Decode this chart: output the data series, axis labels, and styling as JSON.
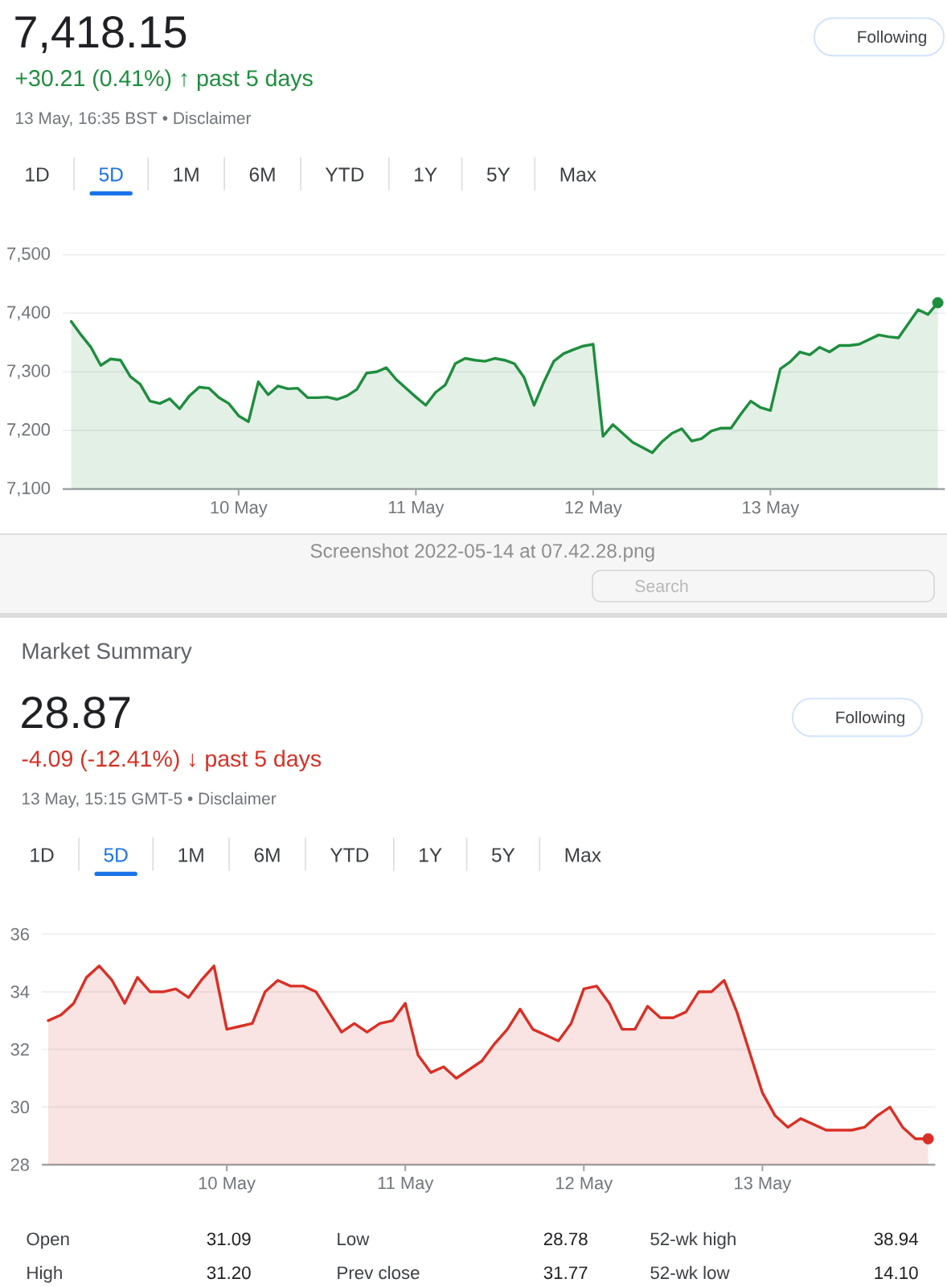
{
  "chart_data": [
    {
      "type": "area",
      "title": "7,418.15",
      "subtitle": "+30.21 (0.41%) ↑ past 5 days",
      "annotations": [
        "13 May, 16:35 BST • Disclaimer",
        "Following",
        "1D",
        "5D",
        "1M",
        "6M",
        "YTD",
        "1Y",
        "5Y",
        "Max"
      ],
      "categories": [
        null,
        null,
        null,
        null,
        null,
        null,
        null,
        null,
        null,
        null,
        null,
        null,
        null,
        null,
        null,
        null,
        null,
        "10 May",
        null,
        null,
        null,
        null,
        null,
        null,
        null,
        null,
        null,
        null,
        null,
        null,
        null,
        null,
        null,
        null,
        null,
        "11 May",
        null,
        null,
        null,
        null,
        null,
        null,
        null,
        null,
        null,
        null,
        null,
        null,
        null,
        null,
        null,
        null,
        null,
        "12 May",
        null,
        null,
        null,
        null,
        null,
        null,
        null,
        null,
        null,
        null,
        null,
        null,
        null,
        null,
        null,
        null,
        null,
        "13 May",
        null,
        null,
        null,
        null,
        null,
        null,
        null,
        null,
        null,
        null,
        null,
        null,
        null,
        null,
        null,
        null,
        null
      ],
      "ylim": [
        7100,
        7500
      ],
      "yticks": [
        {
          "value": 7100,
          "label": "7,100"
        },
        {
          "value": 7200,
          "label": "7,200"
        },
        {
          "value": 7300,
          "label": "7,300"
        },
        {
          "value": 7400,
          "label": "7,400"
        },
        {
          "value": 7500,
          "label": "7,500"
        }
      ],
      "grid": "y",
      "series": [
        {
          "color": "#1e8e3e",
          "values": [
            7386,
            7363,
            7342,
            7311,
            7322,
            7320,
            7292,
            7279,
            7250,
            7246,
            7254,
            7237,
            7259,
            7274,
            7272,
            7256,
            7246,
            7225,
            7215,
            7283,
            7261,
            7276,
            7271,
            7272,
            7256,
            7256,
            7257,
            7253,
            7259,
            7270,
            7298,
            7300,
            7307,
            7287,
            7272,
            7257,
            7243,
            7265,
            7278,
            7314,
            7323,
            7320,
            7318,
            7323,
            7320,
            7314,
            7290,
            7243,
            7283,
            7318,
            7331,
            7338,
            7344,
            7347,
            7190,
            7210,
            7195,
            7180,
            7171,
            7162,
            7181,
            7195,
            7203,
            7182,
            7186,
            7199,
            7204,
            7204,
            7228,
            7250,
            7239,
            7234,
            7305,
            7317,
            7334,
            7329,
            7342,
            7334,
            7345,
            7345,
            7347,
            7355,
            7363,
            7360,
            7358,
            7382,
            7406,
            7398,
            7418
          ]
        },
        {
          "type": "scatter",
          "marker": "circle",
          "color": "#1e8e3e",
          "values": [
            null,
            null,
            null,
            null,
            null,
            null,
            null,
            null,
            null,
            null,
            null,
            null,
            null,
            null,
            null,
            null,
            null,
            null,
            null,
            null,
            null,
            null,
            null,
            null,
            null,
            null,
            null,
            null,
            null,
            null,
            null,
            null,
            null,
            null,
            null,
            null,
            null,
            null,
            null,
            null,
            null,
            null,
            null,
            null,
            null,
            null,
            null,
            null,
            null,
            null,
            null,
            null,
            null,
            null,
            null,
            null,
            null,
            null,
            null,
            null,
            null,
            null,
            null,
            null,
            null,
            null,
            null,
            null,
            null,
            null,
            null,
            null,
            null,
            null,
            null,
            null,
            null,
            null,
            null,
            null,
            null,
            null,
            null,
            null,
            null,
            null,
            null,
            null,
            7418
          ]
        }
      ]
    },
    {
      "type": "other",
      "annotations": [
        "Screenshot 2022-05-14 at 07.42.28.png",
        "Search"
      ]
    },
    {
      "type": "area",
      "title": "28.87",
      "subtitle": "-4.09 (-12.41%) ↓ past 5 days",
      "annotations": [
        "Market Summary",
        "13 May, 15:15 GMT-5 • Disclaimer",
        "Following",
        "1D",
        "5D",
        "1M",
        "6M",
        "YTD",
        "1Y",
        "5Y",
        "Max"
      ],
      "categories": [
        null,
        null,
        null,
        null,
        null,
        null,
        null,
        null,
        null,
        null,
        null,
        null,
        null,
        null,
        "10 May",
        null,
        null,
        null,
        null,
        null,
        null,
        null,
        null,
        null,
        null,
        null,
        null,
        null,
        "11 May",
        null,
        null,
        null,
        null,
        null,
        null,
        null,
        null,
        null,
        null,
        null,
        null,
        null,
        "12 May",
        null,
        null,
        null,
        null,
        null,
        null,
        null,
        null,
        null,
        null,
        null,
        null,
        null,
        "13 May",
        null,
        null,
        null,
        null,
        null,
        null,
        null,
        null,
        null,
        null,
        null,
        null,
        null
      ],
      "ylim": [
        28,
        36
      ],
      "yticks": [
        28,
        30,
        32,
        34,
        36
      ],
      "grid": "y",
      "series": [
        {
          "color": "#d93025",
          "values": [
            33.0,
            33.2,
            33.6,
            34.5,
            34.9,
            34.4,
            33.6,
            34.5,
            34.0,
            34.0,
            34.1,
            33.8,
            34.4,
            34.9,
            32.7,
            32.8,
            32.9,
            34.0,
            34.4,
            34.2,
            34.2,
            34.0,
            33.3,
            32.6,
            32.9,
            32.6,
            32.9,
            33.0,
            33.6,
            31.8,
            31.2,
            31.4,
            31.0,
            31.3,
            31.6,
            32.2,
            32.7,
            33.4,
            32.7,
            32.5,
            32.3,
            32.9,
            34.1,
            34.2,
            33.6,
            32.7,
            32.7,
            33.5,
            33.1,
            33.1,
            33.3,
            34.0,
            34.0,
            34.4,
            33.3,
            31.9,
            30.5,
            29.7,
            29.3,
            29.6,
            29.4,
            29.2,
            29.2,
            29.2,
            29.3,
            29.7,
            30.0,
            29.3,
            28.9,
            28.9
          ]
        },
        {
          "type": "scatter",
          "marker": "circle",
          "color": "#d93025",
          "values": [
            null,
            null,
            null,
            null,
            null,
            null,
            null,
            null,
            null,
            null,
            null,
            null,
            null,
            null,
            null,
            null,
            null,
            null,
            null,
            null,
            null,
            null,
            null,
            null,
            null,
            null,
            null,
            null,
            null,
            null,
            null,
            null,
            null,
            null,
            null,
            null,
            null,
            null,
            null,
            null,
            null,
            null,
            null,
            null,
            null,
            null,
            null,
            null,
            null,
            null,
            null,
            null,
            null,
            null,
            null,
            null,
            null,
            null,
            null,
            null,
            null,
            null,
            null,
            null,
            null,
            null,
            null,
            null,
            null,
            28.9
          ]
        }
      ]
    },
    {
      "type": "other",
      "annotations": [
        "Open",
        "31.09",
        "High",
        "31.20",
        "Low",
        "28.78",
        "Prev close",
        "31.77",
        "52-wk high",
        "38.94",
        "52-wk low",
        "14.10"
      ]
    }
  ]
}
